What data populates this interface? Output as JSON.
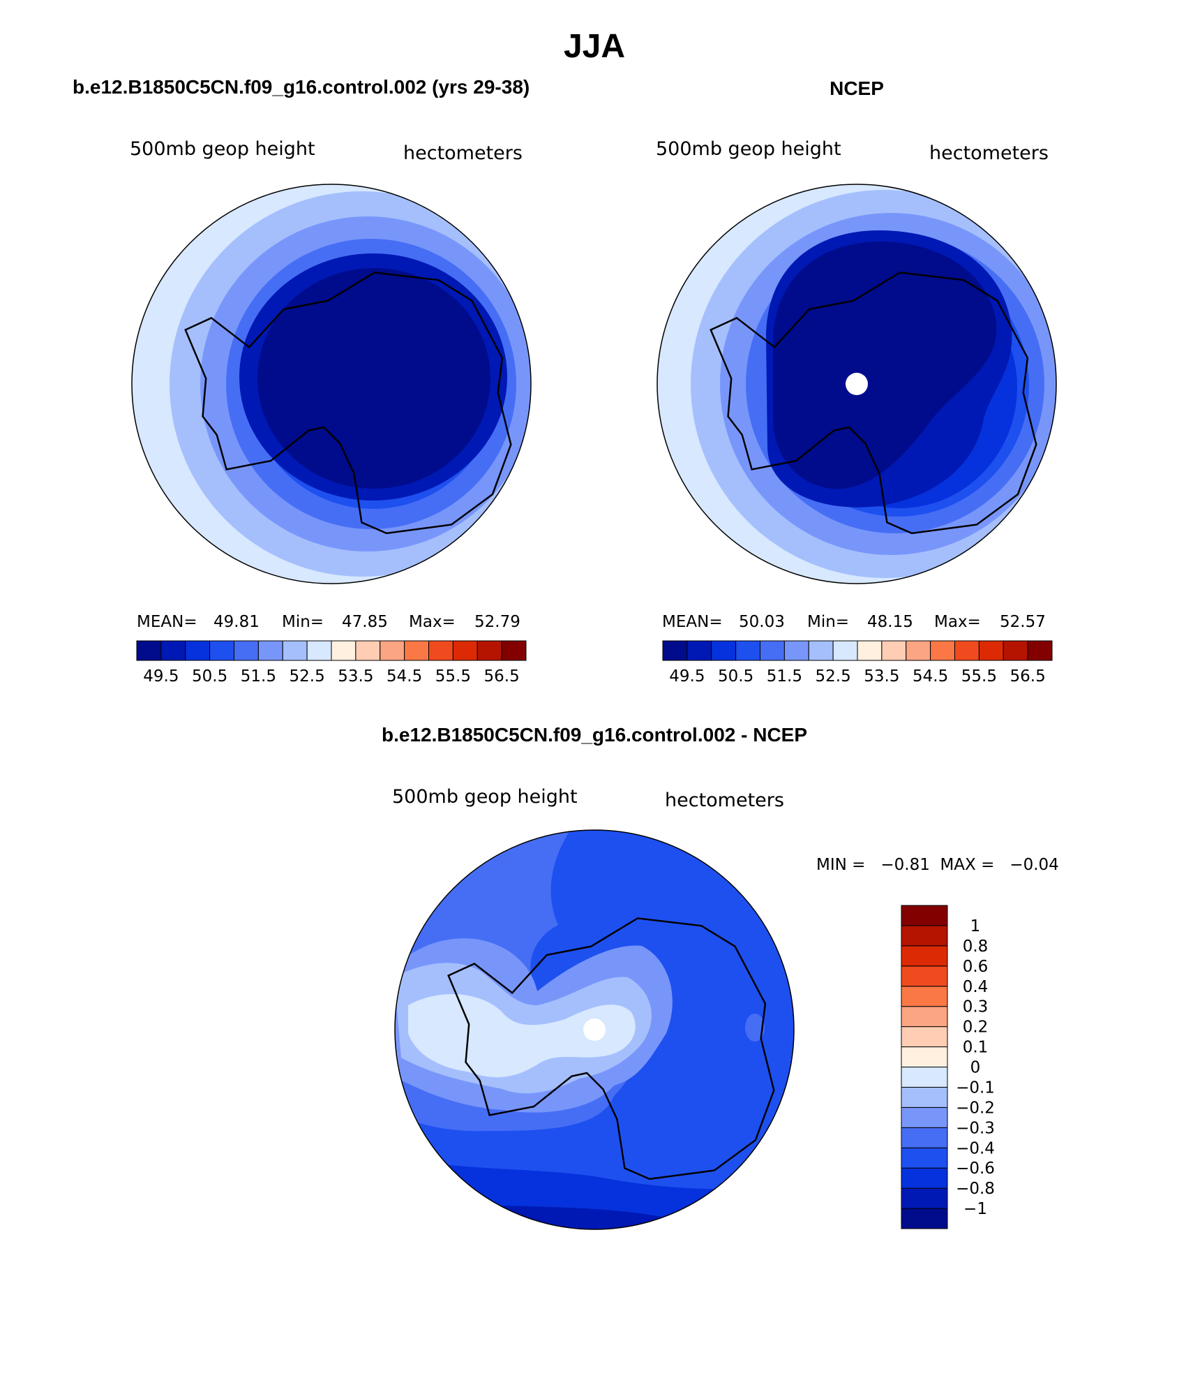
{
  "figure": {
    "title": "JJA"
  },
  "model_title": "b.e12.B1850C5CN.f09_g16.control.002 (yrs 29-38)",
  "obs_title": "NCEP",
  "diff_title": "b.e12.B1850C5CN.f09_g16.control.002 - NCEP",
  "variable_label": "500mb geop height",
  "units_label": "hectometers",
  "panels": {
    "model": {
      "stats": {
        "mean_label": "MEAN=",
        "mean": "49.81",
        "min_label": "Min=",
        "min": "47.85",
        "max_label": "Max=",
        "max": "52.79"
      },
      "contour_levels": [
        49,
        49.5,
        50,
        50.5,
        51,
        51.5,
        52,
        52.5,
        53
      ]
    },
    "obs": {
      "stats": {
        "mean_label": "MEAN=",
        "mean": "50.03",
        "min_label": "Min=",
        "min": "48.15",
        "max_label": "Max=",
        "max": "52.57"
      },
      "contour_levels": [
        49,
        49.5,
        50,
        50.5,
        51,
        51.5,
        52,
        52.5,
        53
      ],
      "missing_pole": true
    },
    "diff": {
      "stats_text": "MIN =   −0.81  MAX =   −0.04",
      "min": -0.81,
      "max": -0.04,
      "missing_pole": true
    }
  },
  "colorbar_abs": {
    "colors": [
      "#000c8c",
      "#0019b4",
      "#0532dc",
      "#1e50f0",
      "#466ef5",
      "#7896fa",
      "#a5bffd",
      "#d7e8ff",
      "#fff0e0",
      "#ffcdb4",
      "#fca582",
      "#fa7846",
      "#f04b1e",
      "#dc2a05",
      "#b41400",
      "#820000"
    ],
    "tick_labels": [
      "49.5",
      "50.5",
      "51.5",
      "52.5",
      "53.5",
      "54.5",
      "55.5",
      "56.5"
    ]
  },
  "colorbar_diff": {
    "colors_bottom_to_top": [
      "#000c8c",
      "#0019b4",
      "#0532dc",
      "#1e50f0",
      "#466ef5",
      "#7896fa",
      "#a5bffd",
      "#d7e8ff",
      "#fff0e0",
      "#ffcdb4",
      "#fca582",
      "#fa7846",
      "#f04b1e",
      "#dc2a05",
      "#b41400",
      "#820000"
    ],
    "tick_labels_top_to_bottom": [
      "1",
      "0.8",
      "0.6",
      "0.4",
      "0.3",
      "0.2",
      "0.1",
      "0",
      "−0.1",
      "−0.2",
      "−0.3",
      "−0.4",
      "−0.6",
      "−0.8",
      "−1"
    ]
  }
}
